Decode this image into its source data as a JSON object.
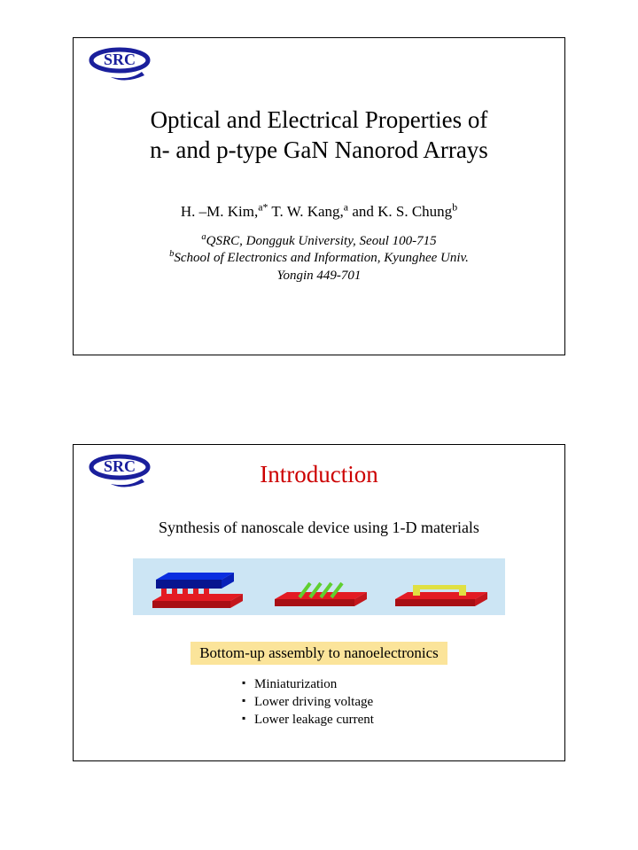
{
  "colors": {
    "logo_blue": "#1a1f9c",
    "slide2_title": "#cc0000",
    "strip_bg": "#cce5f4",
    "red_block": "#e31b23",
    "red_block_dark": "#a80f14",
    "blue_block": "#0a2ee0",
    "blue_block_dark": "#06158f",
    "green_rod": "#5fcf2f",
    "yellow_rod": "#e0e042",
    "highlight_bg": "#fbe49a"
  },
  "logo": {
    "text": "SRC"
  },
  "slide1": {
    "title_line1": "Optical and Electrical Properties of",
    "title_line2": "n- and p-type GaN Nanorod Arrays",
    "authors_html": "H. –M. Kim,<sup>a*</sup> T. W. Kang,<sup>a</sup> and K. S. Chung<sup>b</sup>",
    "affil_line1_html": "<sup>a</sup>QSRC, Dongguk University, Seoul 100-715",
    "affil_line2_html": "<sup>b</sup>School of Electronics and Information, Kyunghee Univ.",
    "affil_line3": "Yongin 449-701"
  },
  "slide2": {
    "title": "Introduction",
    "subtitle": "Synthesis of nanoscale device using 1-D materials",
    "highlight": "Bottom-up assembly to nanoelectronics",
    "bullets": [
      "Miniaturization",
      "Lower driving voltage",
      "Lower leakage current"
    ]
  }
}
